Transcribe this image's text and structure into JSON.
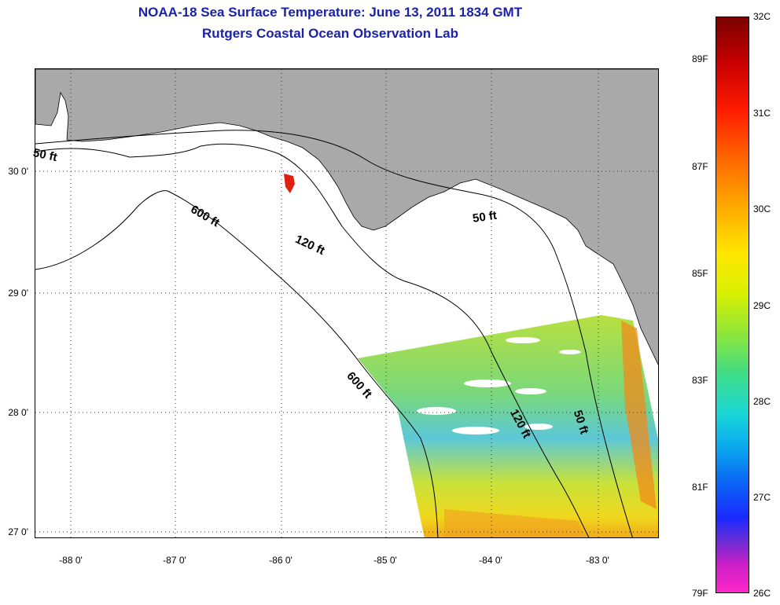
{
  "title": {
    "line1": "NOAA-18 Sea Surface Temperature:  June 13, 2011 1834 GMT",
    "line2": "Rutgers Coastal Ocean Observation Lab"
  },
  "map": {
    "latitude_labels": [
      "30 0'",
      "29 0'",
      "28 0'",
      "27 0'"
    ],
    "longitude_labels": [
      "-88 0'",
      "-87 0'",
      "-86 0'",
      "-85 0'",
      "-84 0'",
      "-83 0'"
    ],
    "depth_contour_labels": [
      "50 ft",
      "600 ft",
      "120 ft",
      "50 ft",
      "600 ft",
      "120 ft",
      "50 ft"
    ],
    "colors": {
      "land": "#a9a9a9",
      "no_data": "#ffffff",
      "contour": "#000000",
      "title": "#1a22a8"
    }
  },
  "colorbar": {
    "celsius_labels": [
      "32C",
      "31C",
      "30C",
      "29C",
      "28C",
      "27C",
      "26C"
    ],
    "fahrenheit_labels": [
      "89F",
      "87F",
      "85F",
      "83F",
      "81F",
      "79F"
    ]
  }
}
